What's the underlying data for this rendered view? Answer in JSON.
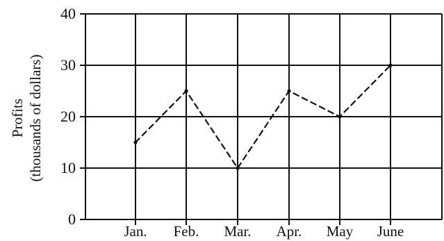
{
  "chart_data": {
    "type": "line",
    "title": "",
    "xlabel": "",
    "ylabel_lines": [
      "Profits",
      "(thousands of dollars)"
    ],
    "categories": [
      "Jan.",
      "Feb.",
      "Mar.",
      "Apr.",
      "May",
      "June"
    ],
    "ylim": [
      0,
      40
    ],
    "yticks": [
      0,
      10,
      20,
      30,
      40
    ],
    "grid": true,
    "series": [
      {
        "values": [
          15,
          25,
          10,
          25,
          20,
          30
        ],
        "style": "dashed",
        "color": "#111111"
      }
    ]
  }
}
